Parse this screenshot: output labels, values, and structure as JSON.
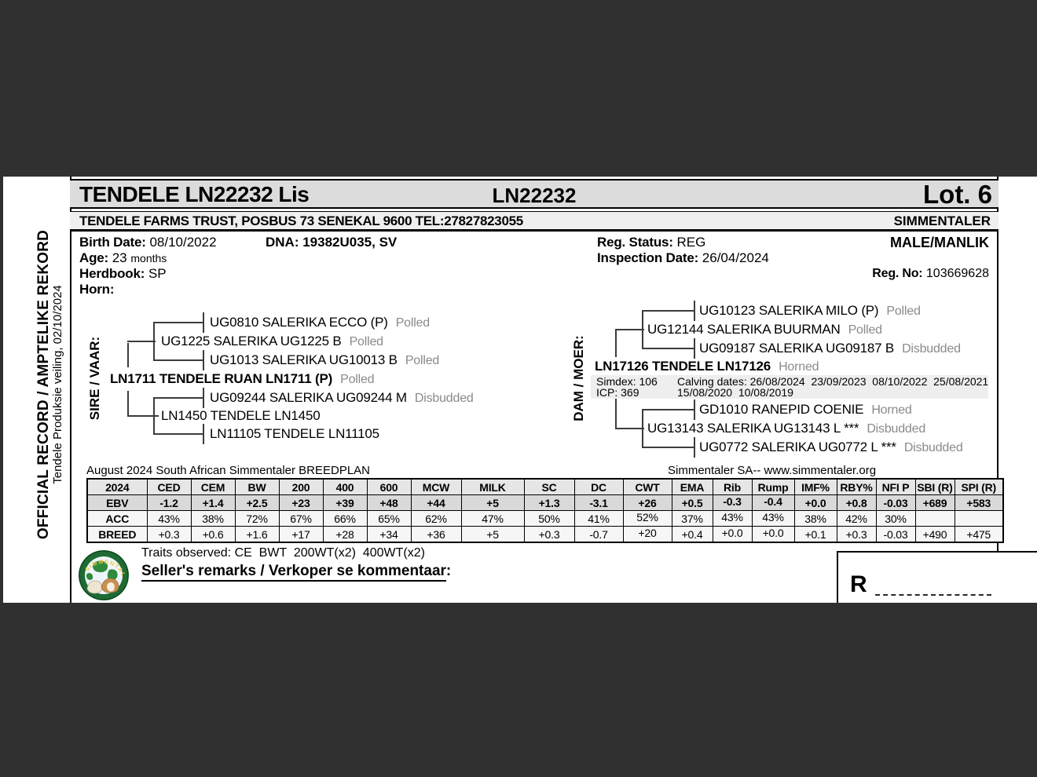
{
  "colors": {
    "viewer_bg": "#303030",
    "bar_gray": "#dcdcdc",
    "muted_text": "#8a8a8a",
    "logo_green": "#1e6b33"
  },
  "sidebar": {
    "line1": "OFFICIAL RECORD / AMPTELIKE REKORD",
    "line2": "Tendele Produksie veiling, 02/10/2024"
  },
  "header": {
    "title": "TENDELE LN22232 Lis",
    "animal_id": "LN22232",
    "lot": "Lot. 6"
  },
  "farm_bar": {
    "farm": "TENDELE FARMS TRUST, POSBUS 73 SENEKAL 9600 TEL:27827823055",
    "breed": "SIMMENTALER"
  },
  "info": {
    "birth_date_label": "Birth Date:",
    "birth_date": "08/10/2022",
    "dna": "DNA: 19382U035, SV",
    "age_label": "Age:",
    "age_value": "23",
    "age_unit": "months",
    "herdbook_label": "Herdbook:",
    "herdbook": "SP",
    "horn_label": "Horn:",
    "reg_status_label": "Reg. Status:",
    "reg_status": "REG",
    "inspection_label": "Inspection Date:",
    "inspection_date": "26/04/2024",
    "sex": "MALE/MANLIK",
    "reg_no_label": "Reg. No:",
    "reg_no": "103669628"
  },
  "pedigree": {
    "sire_label": "SIRE / VAAR:",
    "dam_label": "DAM / MOER:",
    "sire": {
      "name": "LN1711 TENDELE RUAN LN1711 (P)",
      "horn": "Polled",
      "sire": {
        "name": "UG1225 SALERIKA UG1225 B",
        "horn": "Polled",
        "sire": {
          "name": "UG0810 SALERIKA ECCO (P)",
          "horn": "Polled"
        },
        "dam": {
          "name": "UG1013 SALERIKA UG10013 B",
          "horn": "Polled"
        }
      },
      "dam": {
        "name": "LN1450 TENDELE LN1450",
        "horn": "",
        "sire": {
          "name": "UG09244 SALERIKA UG09244 M",
          "horn": "Disbudded"
        },
        "dam": {
          "name": "LN11105 TENDELE LN11105",
          "horn": ""
        }
      }
    },
    "dam": {
      "name": "LN17126 TENDELE LN17126",
      "horn": "Horned",
      "sire": {
        "name": "UG12144 SALERIKA BUURMAN",
        "horn": "Polled",
        "sire": {
          "name": "UG10123 SALERIKA MILO (P)",
          "horn": "Polled"
        },
        "dam": {
          "name": "UG09187 SALERIKA UG09187 B",
          "horn": "Disbudded"
        }
      },
      "dam": {
        "name": "UG13143 SALERIKA UG13143 L ***",
        "horn": "Disbudded",
        "sire": {
          "name": "GD1010 RANEPID COENIE",
          "horn": "Horned"
        },
        "dam": {
          "name": "UG0772 SALERIKA UG0772 L ***",
          "horn": "Disbudded"
        }
      },
      "stats": {
        "simdex": "Simdex: 106",
        "icp": "ICP: 369",
        "calving_line1": "Calving dates: 26/08/2024  23/09/2023  08/10/2022  25/08/2021",
        "calving_line2": "15/08/2020  10/08/2019"
      }
    }
  },
  "breedplan": {
    "title": "August 2024 South African Simmentaler BREEDPLAN",
    "source": "Simmentaler SA-- www.simmentaler.org",
    "columns": [
      "2024",
      "CED",
      "CEM",
      "BW",
      "200",
      "400",
      "600",
      "MCW",
      "MILK",
      "SC",
      "DC",
      "CWT",
      "EMA",
      "Rib",
      "Rump",
      "IMF%",
      "RBY%",
      "NFI P",
      "SBI (R)",
      "SPI (R)"
    ],
    "rows": [
      {
        "label": "EBV",
        "values": [
          "-1.2",
          "+1.4",
          "+2.5",
          "+23",
          "+39",
          "+48",
          "+44",
          "+5",
          "+1.3",
          "-3.1",
          "+26",
          "+0.5",
          "-0.3",
          "-0.4",
          "+0.0",
          "+0.8",
          "-0.03",
          "+689",
          "+583"
        ]
      },
      {
        "label": "ACC",
        "values": [
          "43%",
          "38%",
          "72%",
          "67%",
          "66%",
          "65%",
          "62%",
          "47%",
          "50%",
          "41%",
          "52%",
          "37%",
          "43%",
          "43%",
          "38%",
          "42%",
          "30%",
          "",
          ""
        ]
      },
      {
        "label": "BREED",
        "values": [
          "+0.3",
          "+0.6",
          "+1.6",
          "+17",
          "+28",
          "+34",
          "+36",
          "+5",
          "+0.3",
          "-0.7",
          "+20",
          "+0.4",
          "+0.0",
          "+0.0",
          "+0.1",
          "+0.3",
          "-0.03",
          "+490",
          "+475"
        ]
      }
    ]
  },
  "footer": {
    "traits": "Traits observed: CE  BWT  200WT(x2)  400WT(x2)",
    "remarks_label": "Seller's remarks / Verkoper se kommentaar",
    "remarks_colon": ":",
    "currency": "R"
  }
}
